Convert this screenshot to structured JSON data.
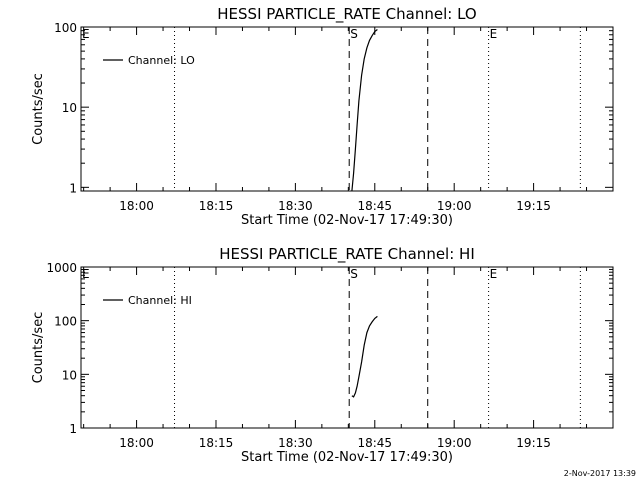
{
  "chart_data": [
    {
      "type": "line",
      "title": "HESSI PARTICLE_RATE Channel: LO",
      "xlabel": "Start Time (02-Nov-17 17:49:30)",
      "ylabel": "Counts/sec",
      "y_scale": "log",
      "ylim": [
        0.9,
        100
      ],
      "xlim": [
        "17:49:30",
        "19:30:00"
      ],
      "x_tick_labels": [
        "18:00",
        "18:15",
        "18:30",
        "18:45",
        "19:00",
        "19:15"
      ],
      "y_tick_labels": [
        "1",
        "10",
        "100"
      ],
      "grid": false,
      "legend": "top-left",
      "series": [
        {
          "name": "Channel: LO",
          "x": [
            "18:40:40",
            "18:41:00",
            "18:41:20",
            "18:41:40",
            "18:42:00",
            "18:42:30",
            "18:43:00",
            "18:43:30",
            "18:44:00",
            "18:44:30",
            "18:45:00",
            "18:45:30"
          ],
          "y": [
            0.9,
            1.5,
            3,
            6,
            12,
            25,
            40,
            55,
            68,
            78,
            88,
            93
          ]
        }
      ],
      "vlines": [
        {
          "x": "18:07:10",
          "style": "dotted",
          "label": ""
        },
        {
          "x": "18:40:10",
          "style": "dashed",
          "label": "S"
        },
        {
          "x": "18:55:00",
          "style": "dashed",
          "label": ""
        },
        {
          "x": "19:06:30",
          "style": "dotted",
          "label": "E"
        },
        {
          "x": "19:23:50",
          "style": "dotted",
          "label": ""
        }
      ],
      "edge_marker": "E"
    },
    {
      "type": "line",
      "title": "HESSI PARTICLE_RATE Channel: HI",
      "xlabel": "Start Time (02-Nov-17 17:49:30)",
      "ylabel": "Counts/sec",
      "y_scale": "log",
      "ylim": [
        1,
        1000
      ],
      "xlim": [
        "17:49:30",
        "19:30:00"
      ],
      "x_tick_labels": [
        "18:00",
        "18:15",
        "18:30",
        "18:45",
        "19:00",
        "19:15"
      ],
      "y_tick_labels": [
        "1",
        "10",
        "100",
        "1000"
      ],
      "grid": false,
      "legend": "top-left",
      "series": [
        {
          "name": "Channel: HI",
          "x": [
            "18:40:40",
            "18:41:00",
            "18:41:20",
            "18:41:40",
            "18:42:00",
            "18:42:30",
            "18:43:00",
            "18:43:30",
            "18:44:00",
            "18:44:30",
            "18:45:00",
            "18:45:30"
          ],
          "y": [
            4,
            3.8,
            4.5,
            6,
            9,
            17,
            35,
            60,
            80,
            95,
            110,
            120
          ]
        }
      ],
      "vlines": [
        {
          "x": "18:07:10",
          "style": "dotted",
          "label": ""
        },
        {
          "x": "18:40:10",
          "style": "dashed",
          "label": "S"
        },
        {
          "x": "18:55:00",
          "style": "dashed",
          "label": ""
        },
        {
          "x": "19:06:30",
          "style": "dotted",
          "label": "E"
        },
        {
          "x": "19:23:50",
          "style": "dotted",
          "label": ""
        }
      ],
      "edge_marker": "E"
    }
  ],
  "footer_stamp": "2-Nov-2017 13:39"
}
